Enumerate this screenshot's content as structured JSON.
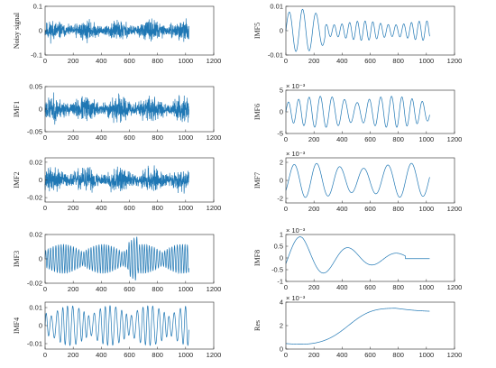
{
  "chart_data": [
    {
      "type": "line",
      "ylabel": "Noisy signal",
      "xlim": [
        0,
        1200
      ],
      "ylim": [
        -0.1,
        0.1
      ],
      "xticks": [
        "0",
        "200",
        "400",
        "600",
        "800",
        "1000",
        "1200"
      ],
      "yticks": [
        "-0.1",
        "0",
        "0.1"
      ],
      "ytick_values": [
        -0.1,
        0,
        0.1
      ],
      "exponent": "",
      "series": [
        {
          "n": 1024,
          "amplitude": 0.06,
          "kind": "noise",
          "seed": 11
        }
      ]
    },
    {
      "type": "line",
      "ylabel": "IMF1",
      "xlim": [
        0,
        1200
      ],
      "ylim": [
        -0.05,
        0.05
      ],
      "xticks": [
        "0",
        "200",
        "400",
        "600",
        "800",
        "1000",
        "1200"
      ],
      "yticks": [
        "-0.05",
        "0",
        "0.05"
      ],
      "ytick_values": [
        -0.05,
        0,
        0.05
      ],
      "exponent": "",
      "series": [
        {
          "n": 1024,
          "amplitude": 0.04,
          "kind": "noise",
          "seed": 23
        }
      ]
    },
    {
      "type": "line",
      "ylabel": "IMF2",
      "xlim": [
        0,
        1200
      ],
      "ylim": [
        -0.025,
        0.025
      ],
      "xticks": [
        "0",
        "200",
        "400",
        "600",
        "800",
        "1000",
        "1200"
      ],
      "yticks": [
        "-0.02",
        "0",
        "0.02"
      ],
      "ytick_values": [
        -0.02,
        0,
        0.02
      ],
      "exponent": "",
      "series": [
        {
          "n": 1024,
          "amplitude": 0.02,
          "kind": "noise",
          "seed": 37
        }
      ]
    },
    {
      "type": "line",
      "ylabel": "IMF3",
      "xlim": [
        0,
        1200
      ],
      "ylim": [
        -0.02,
        0.02
      ],
      "xticks": [
        "0",
        "200",
        "400",
        "600",
        "800",
        "1000",
        "1200"
      ],
      "yticks": [
        "-0.02",
        "0",
        "0.02"
      ],
      "ytick_values": [
        -0.02,
        0,
        0.02
      ],
      "exponent": "",
      "series": [
        {
          "n": 1024,
          "amplitude": 0.012,
          "kind": "oscillation",
          "period": 18,
          "seed": 41
        }
      ]
    },
    {
      "type": "line",
      "ylabel": "IMF4",
      "xlim": [
        0,
        1200
      ],
      "ylim": [
        -0.013,
        0.013
      ],
      "xticks": [
        "0",
        "200",
        "400",
        "600",
        "800",
        "1000",
        "1200"
      ],
      "yticks": [
        "-0.01",
        "0",
        "0.01"
      ],
      "ytick_values": [
        -0.01,
        0,
        0.01
      ],
      "exponent": "",
      "series": [
        {
          "n": 1024,
          "amplitude": 0.011,
          "kind": "oscillation",
          "period": 38,
          "seed": 53
        }
      ]
    },
    {
      "type": "line",
      "ylabel": "IMF5",
      "xlim": [
        0,
        1200
      ],
      "ylim": [
        -0.01,
        0.01
      ],
      "xticks": [
        "0",
        "200",
        "400",
        "600",
        "800",
        "1000",
        "1200"
      ],
      "yticks": [
        "-0.01",
        "0",
        "0.01"
      ],
      "ytick_values": [
        -0.01,
        0,
        0.01
      ],
      "exponent": "",
      "series": [
        {
          "n": 1024,
          "amplitude": 0.004,
          "kind": "imf5",
          "seed": 61
        }
      ]
    },
    {
      "type": "line",
      "ylabel": "IMF6",
      "xlim": [
        0,
        1200
      ],
      "ylim": [
        -0.005,
        0.005
      ],
      "xticks": [
        "0",
        "200",
        "400",
        "600",
        "800",
        "1000",
        "1200"
      ],
      "yticks": [
        "-5",
        "0",
        "5"
      ],
      "ytick_values": [
        -0.005,
        0,
        0.005
      ],
      "exponent": "× 10⁻³",
      "series": [
        {
          "n": 1024,
          "amplitude": 0.003,
          "kind": "imf6",
          "seed": 71
        }
      ]
    },
    {
      "type": "line",
      "ylabel": "IMF7",
      "xlim": [
        0,
        1200
      ],
      "ylim": [
        -0.0025,
        0.0025
      ],
      "xticks": [
        "0",
        "200",
        "400",
        "600",
        "800",
        "1000",
        "1200"
      ],
      "yticks": [
        "-2",
        "0",
        "2"
      ],
      "ytick_values": [
        -0.002,
        0,
        0.002
      ],
      "exponent": "× 10⁻³",
      "series": [
        {
          "n": 1024,
          "amplitude": 0.0019,
          "kind": "imf7",
          "seed": 83
        }
      ]
    },
    {
      "type": "line",
      "ylabel": "IMF8",
      "xlim": [
        0,
        1200
      ],
      "ylim": [
        -0.001,
        0.001
      ],
      "xticks": [
        "0",
        "200",
        "400",
        "600",
        "800",
        "1000",
        "1200"
      ],
      "yticks": [
        "-1",
        "-0.5",
        "0",
        "0.5",
        "1"
      ],
      "ytick_values": [
        -0.001,
        -0.0005,
        0,
        0.0005,
        0.001
      ],
      "exponent": "× 10⁻³",
      "series": [
        {
          "n": 1024,
          "kind": "imf8",
          "seed": 97
        }
      ]
    },
    {
      "type": "line",
      "ylabel": "Res",
      "xlim": [
        0,
        1200
      ],
      "ylim": [
        0,
        0.004
      ],
      "xticks": [
        "0",
        "200",
        "400",
        "600",
        "800",
        "1000",
        "1200"
      ],
      "yticks": [
        "0",
        "2",
        "4"
      ],
      "ytick_values": [
        0,
        0.002,
        0.004
      ],
      "exponent": "× 10⁻³",
      "series": [
        {
          "n": 1024,
          "kind": "res",
          "seed": 101
        }
      ]
    }
  ],
  "colors": {
    "line": "#1f77b4",
    "axis": "#262626",
    "text": "#262626"
  }
}
